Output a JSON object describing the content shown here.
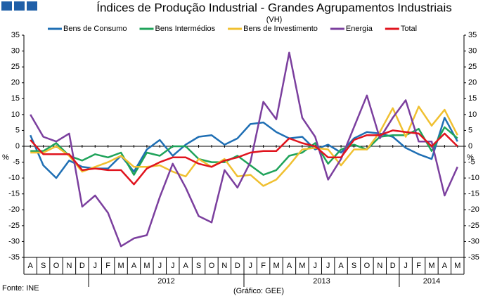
{
  "chart_data": {
    "type": "line",
    "title": "Índices de Produção Industrial - Grandes Agrupamentos Industriais",
    "subtitle": "(VH)",
    "y_label": "%",
    "categories": [
      "A",
      "S",
      "O",
      "N",
      "D",
      "J",
      "F",
      "M",
      "A",
      "M",
      "J",
      "J",
      "A",
      "S",
      "O",
      "N",
      "D",
      "J",
      "F",
      "M",
      "A",
      "M",
      "J",
      "J",
      "A",
      "S",
      "O",
      "N",
      "D",
      "J",
      "F",
      "M",
      "A",
      "M"
    ],
    "years": [
      "2012",
      "2013",
      "2014"
    ],
    "ylim": [
      -35,
      35
    ],
    "yticks": [
      -35,
      -30,
      -25,
      -20,
      -15,
      -10,
      -5,
      0,
      5,
      10,
      15,
      20,
      25,
      30,
      35
    ],
    "source": "Fonte: INE",
    "credit": "(Gráfico: GEE)",
    "series": [
      {
        "name": "Bens de Consumo",
        "color": "#1f6fb4",
        "values": [
          3.5,
          -6,
          -10,
          -4.5,
          -6.5,
          -7,
          -7,
          -3,
          -8,
          -1,
          2,
          -3,
          0.5,
          3,
          3.5,
          0.5,
          2.5,
          7,
          7.5,
          4.5,
          2.5,
          3,
          -1,
          0.5,
          -2,
          2.5,
          4.5,
          4,
          3,
          -0.5,
          -2.5,
          -4,
          9,
          1.5
        ]
      },
      {
        "name": "Bens Intermédios",
        "color": "#1fa35a",
        "values": [
          -1.5,
          -1.5,
          1,
          -3,
          -4.5,
          -2.5,
          -3.5,
          -2,
          -9,
          -2,
          -3,
          0,
          0,
          -4,
          -5,
          -5,
          -3,
          -6,
          -9,
          -7.5,
          -3,
          -2,
          1,
          -5.5,
          -1,
          0.5,
          -1,
          3,
          3.5,
          3.5,
          5.5,
          -1.5,
          6,
          2.5
        ]
      },
      {
        "name": "Bens de Investimento",
        "color": "#f0c030",
        "values": [
          -2,
          -2,
          0,
          -3,
          -8,
          -6.5,
          -5,
          -3,
          -6.5,
          -6.5,
          -6,
          -8,
          -9.5,
          -4,
          -6.5,
          -4,
          -9.5,
          -9,
          -12.5,
          -10.5,
          -6,
          -1,
          -0.5,
          -1,
          -6,
          -1,
          -1,
          4.5,
          12,
          3,
          12.5,
          6.5,
          11.5,
          3.5
        ]
      },
      {
        "name": "Energia",
        "color": "#7b3f9e",
        "values": [
          10,
          3,
          1.5,
          4,
          -19,
          -15.5,
          -21,
          -31.5,
          -29,
          -28,
          -16,
          -5.5,
          -13,
          -22,
          -24,
          -7.5,
          -13,
          -5,
          14,
          8.5,
          29.5,
          9,
          3,
          -10.5,
          -4,
          6,
          16,
          2.5,
          9,
          14.5,
          1.5,
          1.5,
          -15.5,
          -6.5
        ]
      },
      {
        "name": "Total",
        "color": "#e0141e",
        "values": [
          2,
          -2.5,
          -2.5,
          -2.5,
          -7.5,
          -7,
          -7.5,
          -7.5,
          -12,
          -7,
          -5,
          -3.5,
          -3.5,
          -5.5,
          -6.5,
          -4.5,
          -3.5,
          -2,
          -1.5,
          -1.5,
          2.5,
          1,
          0,
          -3.5,
          -3.5,
          2,
          3.5,
          3.5,
          5,
          4.5,
          4,
          0,
          4,
          0
        ]
      }
    ]
  }
}
